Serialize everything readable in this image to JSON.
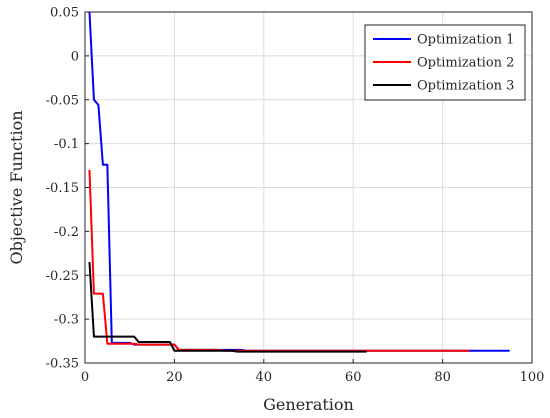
{
  "chart_data": {
    "type": "line",
    "xlabel": "Generation",
    "ylabel": "Objective Function",
    "xlim": [
      0,
      100
    ],
    "ylim": [
      -0.35,
      0.05
    ],
    "grid": true,
    "legend_position": "top-right",
    "x_ticks": [
      "0",
      "20",
      "40",
      "60",
      "80",
      "100"
    ],
    "y_ticks": [
      "0.05",
      "0",
      "-0.05",
      "-0.1",
      "-0.15",
      "-0.2",
      "-0.25",
      "-0.3",
      "-0.35"
    ],
    "series": [
      {
        "name": "Optimization 1",
        "color": "#0000ff",
        "points": [
          [
            1,
            0.05
          ],
          [
            2,
            -0.05
          ],
          [
            3,
            -0.056
          ],
          [
            4,
            -0.124
          ],
          [
            5,
            -0.124
          ],
          [
            6,
            -0.327
          ],
          [
            10,
            -0.327
          ],
          [
            11,
            -0.329
          ],
          [
            20,
            -0.329
          ],
          [
            21,
            -0.335
          ],
          [
            35,
            -0.335
          ],
          [
            36,
            -0.336
          ],
          [
            95,
            -0.336
          ]
        ]
      },
      {
        "name": "Optimization 2",
        "color": "#ff0000",
        "points": [
          [
            1,
            -0.13
          ],
          [
            2,
            -0.271
          ],
          [
            4,
            -0.271
          ],
          [
            5,
            -0.328
          ],
          [
            11,
            -0.328
          ],
          [
            12,
            -0.329
          ],
          [
            20,
            -0.329
          ],
          [
            21,
            -0.335
          ],
          [
            30,
            -0.335
          ],
          [
            31,
            -0.336
          ],
          [
            86,
            -0.336
          ]
        ]
      },
      {
        "name": "Optimization 3",
        "color": "#000000",
        "points": [
          [
            1,
            -0.235
          ],
          [
            2,
            -0.32
          ],
          [
            11,
            -0.32
          ],
          [
            12,
            -0.326
          ],
          [
            19,
            -0.326
          ],
          [
            20,
            -0.336
          ],
          [
            33,
            -0.336
          ],
          [
            34,
            -0.337
          ],
          [
            63,
            -0.337
          ]
        ]
      }
    ]
  }
}
